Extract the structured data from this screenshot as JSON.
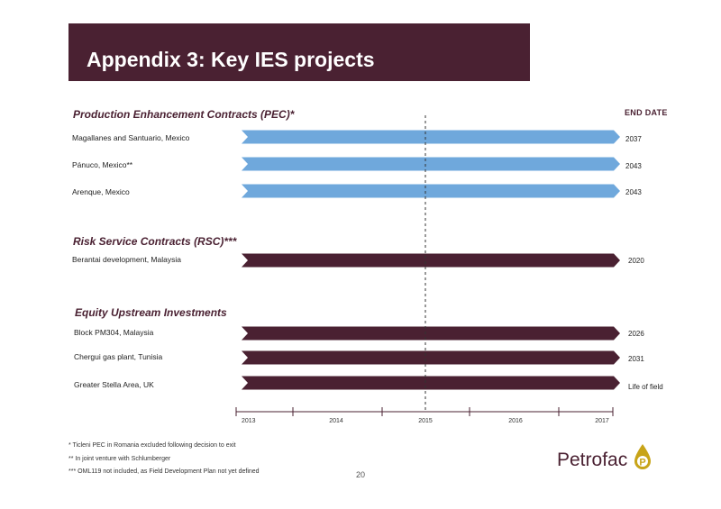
{
  "title": "Appendix 3: Key IES projects",
  "end_date_header": "END DATE",
  "sections": [
    {
      "title": "Production Enhancement Contracts (PEC)*"
    },
    {
      "title": "Risk Service Contracts (RSC)***"
    },
    {
      "title": "Equity Upstream Investments"
    }
  ],
  "projects": [
    {
      "label": "Magallanes and Santuario, Mexico",
      "end": "2037",
      "color": "#6fa8dc"
    },
    {
      "label": "Pánuco, Mexico**",
      "end": "2043",
      "color": "#6fa8dc"
    },
    {
      "label": "Arenque, Mexico",
      "end": "2043",
      "color": "#6fa8dc"
    },
    {
      "label": "Berantai development, Malaysia",
      "end": "2020",
      "color": "#4a2132"
    },
    {
      "label": "Block PM304, Malaysia",
      "end": "2026",
      "color": "#4a2132"
    },
    {
      "label": "Chergui gas plant, Tunisia",
      "end": "2031",
      "color": "#4a2132"
    },
    {
      "label": "Greater Stella Area, UK",
      "end": "Life of field",
      "color": "#4a2132"
    }
  ],
  "chart_data": {
    "type": "gantt",
    "x_ticks": [
      "2013",
      "2014",
      "2015",
      "2016",
      "2017"
    ],
    "current_marker": "2015",
    "bars": [
      {
        "name": "Magallanes and Santuario, Mexico",
        "start": 2013,
        "end_date": "2037"
      },
      {
        "name": "Pánuco, Mexico**",
        "start": 2013,
        "end_date": "2043"
      },
      {
        "name": "Arenque, Mexico",
        "start": 2013,
        "end_date": "2043"
      },
      {
        "name": "Berantai development, Malaysia",
        "start": 2013,
        "end_date": "2020"
      },
      {
        "name": "Block PM304, Malaysia",
        "start": 2013,
        "end_date": "2026"
      },
      {
        "name": "Chergui gas plant, Tunisia",
        "start": 2013,
        "end_date": "2031"
      },
      {
        "name": "Greater Stella Area, UK",
        "start": 2013,
        "end_date": "Life of field"
      }
    ]
  },
  "footnotes": [
    "* Ticleni PEC in Romania excluded following decision to exit",
    "** In joint venture with Schlumberger",
    "*** OML119 not included, as Field Development Plan not yet defined"
  ],
  "page_number": "20",
  "logo": {
    "text": "Petrofac",
    "mark": "P",
    "brand_color": "#4a2132",
    "accent_color": "#c8a418"
  }
}
